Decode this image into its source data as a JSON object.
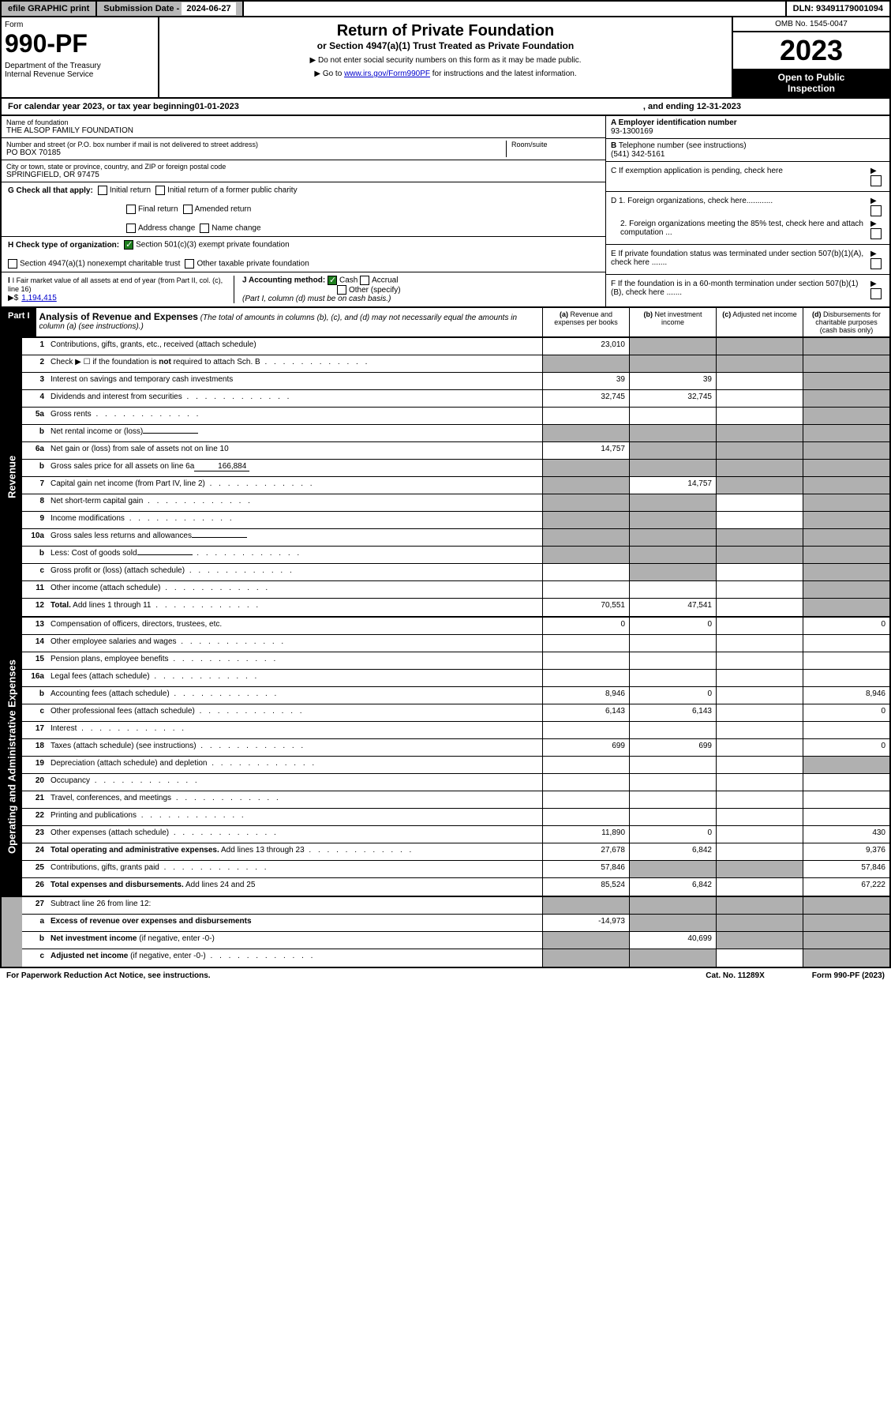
{
  "topbar": {
    "efile": "efile GRAPHIC print",
    "subdate_label": "Submission Date - ",
    "subdate": "2024-06-27",
    "dln_label": "DLN: ",
    "dln": "93491179001094"
  },
  "header": {
    "form_label": "Form",
    "form_num": "990-PF",
    "dept": "Department of the Treasury\nInternal Revenue Service",
    "title": "Return of Private Foundation",
    "subtitle": "or Section 4947(a)(1) Trust Treated as Private Foundation",
    "instr1": "▶ Do not enter social security numbers on this form as it may be made public.",
    "instr2": "▶ Go to ",
    "instr_link": "www.irs.gov/Form990PF",
    "instr3": " for instructions and the latest information.",
    "omb": "OMB No. 1545-0047",
    "year": "2023",
    "open": "Open to Public Inspection"
  },
  "calendar": {
    "prefix": "For calendar year 2023, or tax year beginning ",
    "begin": "01-01-2023",
    "mid": " , and ending ",
    "end": "12-31-2023"
  },
  "info": {
    "name_label": "Name of foundation",
    "name": "THE ALSOP FAMILY FOUNDATION",
    "addr_label": "Number and street (or P.O. box number if mail is not delivered to street address)",
    "addr": "PO BOX 70185",
    "room_label": "Room/suite",
    "city_label": "City or town, state or province, country, and ZIP or foreign postal code",
    "city": "SPRINGFIELD, OR  97475",
    "a_label": "A Employer identification number",
    "a_val": "93-1300169",
    "b_label": "B Telephone number (see instructions)",
    "b_val": "(541) 342-5161",
    "c_label": "C If exemption application is pending, check here",
    "d1_label": "D 1. Foreign organizations, check here............",
    "d2_label": "2. Foreign organizations meeting the 85% test, check here and attach computation ...",
    "e_label": "E  If private foundation status was terminated under section 507(b)(1)(A), check here .......",
    "f_label": "F  If the foundation is in a 60-month termination under section 507(b)(1)(B), check here .......",
    "g_label": "G Check all that apply:",
    "g_opts": [
      "Initial return",
      "Initial return of a former public charity",
      "Final return",
      "Amended return",
      "Address change",
      "Name change"
    ],
    "h_label": "H Check type of organization:",
    "h_opt1": "Section 501(c)(3) exempt private foundation",
    "h_opt2": "Section 4947(a)(1) nonexempt charitable trust",
    "h_opt3": "Other taxable private foundation",
    "i_label": "I Fair market value of all assets at end of year (from Part II, col. (c), line 16)",
    "i_val": "1,194,415",
    "j_label": "J Accounting method:",
    "j_cash": "Cash",
    "j_accrual": "Accrual",
    "j_other": "Other (specify)",
    "j_note": "(Part I, column (d) must be on cash basis.)"
  },
  "part1": {
    "label": "Part I",
    "title": "Analysis of Revenue and Expenses",
    "desc": " (The total of amounts in columns (b), (c), and (d) may not necessarily equal the amounts in column (a) (see instructions).)",
    "cols": {
      "a": "(a)   Revenue and expenses per books",
      "b": "(b)   Net investment income",
      "c": "(c)   Adjusted net income",
      "d": "(d)   Disbursements for charitable purposes (cash basis only)"
    }
  },
  "sections": {
    "revenue": "Revenue",
    "expenses": "Operating and Administrative Expenses"
  },
  "rows": [
    {
      "n": "1",
      "label": "Contributions, gifts, grants, etc., received (attach schedule)",
      "a": "23,010",
      "shaded": [
        "b",
        "c",
        "d"
      ]
    },
    {
      "n": "2",
      "label": "Check ▶ ☐ if the foundation is <b>not</b> required to attach Sch. B",
      "dotted": true,
      "shaded": [
        "a",
        "b",
        "c",
        "d"
      ]
    },
    {
      "n": "3",
      "label": "Interest on savings and temporary cash investments",
      "a": "39",
      "b": "39",
      "shaded": [
        "d"
      ]
    },
    {
      "n": "4",
      "label": "Dividends and interest from securities",
      "dotted": true,
      "a": "32,745",
      "b": "32,745",
      "shaded": [
        "d"
      ]
    },
    {
      "n": "5a",
      "label": "Gross rents",
      "dotted": true,
      "shaded": [
        "d"
      ]
    },
    {
      "n": "b",
      "label": "Net rental income or (loss)",
      "inline": "",
      "shaded": [
        "a",
        "b",
        "c",
        "d"
      ]
    },
    {
      "n": "6a",
      "label": "Net gain or (loss) from sale of assets not on line 10",
      "a": "14,757",
      "shaded": [
        "b",
        "c",
        "d"
      ]
    },
    {
      "n": "b",
      "label": "Gross sales price for all assets on line 6a",
      "inline": "166,884",
      "shaded": [
        "a",
        "b",
        "c",
        "d"
      ]
    },
    {
      "n": "7",
      "label": "Capital gain net income (from Part IV, line 2)",
      "dotted": true,
      "b": "14,757",
      "shaded": [
        "a",
        "c",
        "d"
      ]
    },
    {
      "n": "8",
      "label": "Net short-term capital gain",
      "dotted": true,
      "shaded": [
        "a",
        "b",
        "d"
      ]
    },
    {
      "n": "9",
      "label": "Income modifications",
      "dotted": true,
      "shaded": [
        "a",
        "b",
        "d"
      ]
    },
    {
      "n": "10a",
      "label": "Gross sales less returns and allowances",
      "inline": "",
      "shaded": [
        "a",
        "b",
        "c",
        "d"
      ]
    },
    {
      "n": "b",
      "label": "Less: Cost of goods sold",
      "dotted": true,
      "inline": "",
      "shaded": [
        "a",
        "b",
        "c",
        "d"
      ]
    },
    {
      "n": "c",
      "label": "Gross profit or (loss) (attach schedule)",
      "dotted": true,
      "shaded": [
        "b",
        "d"
      ]
    },
    {
      "n": "11",
      "label": "Other income (attach schedule)",
      "dotted": true,
      "shaded": [
        "d"
      ]
    },
    {
      "n": "12",
      "label": "<b>Total.</b> Add lines 1 through 11",
      "dotted": true,
      "a": "70,551",
      "b": "47,541",
      "shaded": [
        "d"
      ]
    }
  ],
  "exp_rows": [
    {
      "n": "13",
      "label": "Compensation of officers, directors, trustees, etc.",
      "a": "0",
      "b": "0",
      "d": "0"
    },
    {
      "n": "14",
      "label": "Other employee salaries and wages",
      "dotted": true
    },
    {
      "n": "15",
      "label": "Pension plans, employee benefits",
      "dotted": true
    },
    {
      "n": "16a",
      "label": "Legal fees (attach schedule)",
      "dotted": true
    },
    {
      "n": "b",
      "label": "Accounting fees (attach schedule)",
      "dotted": true,
      "a": "8,946",
      "b": "0",
      "d": "8,946"
    },
    {
      "n": "c",
      "label": "Other professional fees (attach schedule)",
      "dotted": true,
      "a": "6,143",
      "b": "6,143",
      "d": "0"
    },
    {
      "n": "17",
      "label": "Interest",
      "dotted": true
    },
    {
      "n": "18",
      "label": "Taxes (attach schedule) (see instructions)",
      "dotted": true,
      "a": "699",
      "b": "699",
      "d": "0"
    },
    {
      "n": "19",
      "label": "Depreciation (attach schedule) and depletion",
      "dotted": true,
      "shaded": [
        "d"
      ]
    },
    {
      "n": "20",
      "label": "Occupancy",
      "dotted": true
    },
    {
      "n": "21",
      "label": "Travel, conferences, and meetings",
      "dotted": true
    },
    {
      "n": "22",
      "label": "Printing and publications",
      "dotted": true
    },
    {
      "n": "23",
      "label": "Other expenses (attach schedule)",
      "dotted": true,
      "a": "11,890",
      "b": "0",
      "d": "430"
    },
    {
      "n": "24",
      "label": "<b>Total operating and administrative expenses.</b> Add lines 13 through 23",
      "dotted": true,
      "a": "27,678",
      "b": "6,842",
      "d": "9,376"
    },
    {
      "n": "25",
      "label": "Contributions, gifts, grants paid",
      "dotted": true,
      "a": "57,846",
      "shaded": [
        "b",
        "c"
      ],
      "d": "57,846"
    },
    {
      "n": "26",
      "label": "<b>Total expenses and disbursements.</b> Add lines 24 and 25",
      "a": "85,524",
      "b": "6,842",
      "d": "67,222"
    }
  ],
  "bottom_rows": [
    {
      "n": "27",
      "label": "Subtract line 26 from line 12:",
      "shaded": [
        "a",
        "b",
        "c",
        "d"
      ]
    },
    {
      "n": "a",
      "label": "<b>Excess of revenue over expenses and disbursements</b>",
      "a": "-14,973",
      "shaded": [
        "b",
        "c",
        "d"
      ]
    },
    {
      "n": "b",
      "label": "<b>Net investment income</b> (if negative, enter -0-)",
      "b": "40,699",
      "shaded": [
        "a",
        "c",
        "d"
      ]
    },
    {
      "n": "c",
      "label": "<b>Adjusted net income</b> (if negative, enter -0-)",
      "dotted": true,
      "shaded": [
        "a",
        "b",
        "d"
      ]
    }
  ],
  "footer": {
    "left": "For Paperwork Reduction Act Notice, see instructions.",
    "mid": "Cat. No. 11289X",
    "right": "Form 990-PF (2023)"
  },
  "colors": {
    "black": "#000000",
    "gray": "#b8b8b8",
    "shaded": "#b0b0b0",
    "link": "#0000cc",
    "check": "#1e7e1e"
  }
}
